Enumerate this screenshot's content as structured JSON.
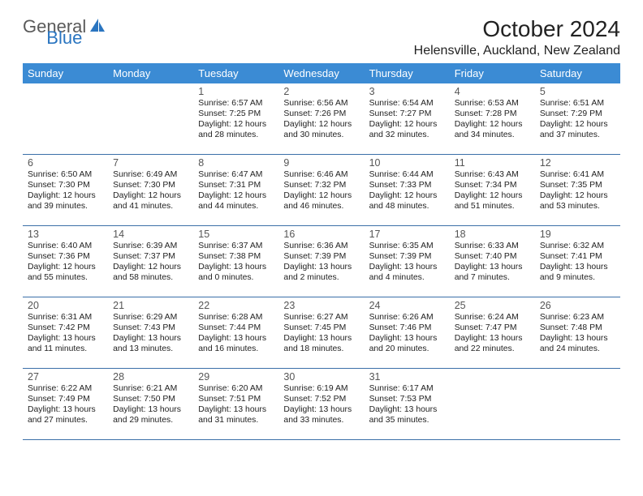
{
  "logo": {
    "text1": "General",
    "text2": "Blue"
  },
  "title": "October 2024",
  "location": "Helensville, Auckland, New Zealand",
  "header_color": "#3b8bd4",
  "divider_color": "#3b6fa8",
  "weekdays": [
    "Sunday",
    "Monday",
    "Tuesday",
    "Wednesday",
    "Thursday",
    "Friday",
    "Saturday"
  ],
  "weeks": [
    [
      null,
      null,
      {
        "d": "1",
        "sr": "Sunrise: 6:57 AM",
        "ss": "Sunset: 7:25 PM",
        "dl1": "Daylight: 12 hours",
        "dl2": "and 28 minutes."
      },
      {
        "d": "2",
        "sr": "Sunrise: 6:56 AM",
        "ss": "Sunset: 7:26 PM",
        "dl1": "Daylight: 12 hours",
        "dl2": "and 30 minutes."
      },
      {
        "d": "3",
        "sr": "Sunrise: 6:54 AM",
        "ss": "Sunset: 7:27 PM",
        "dl1": "Daylight: 12 hours",
        "dl2": "and 32 minutes."
      },
      {
        "d": "4",
        "sr": "Sunrise: 6:53 AM",
        "ss": "Sunset: 7:28 PM",
        "dl1": "Daylight: 12 hours",
        "dl2": "and 34 minutes."
      },
      {
        "d": "5",
        "sr": "Sunrise: 6:51 AM",
        "ss": "Sunset: 7:29 PM",
        "dl1": "Daylight: 12 hours",
        "dl2": "and 37 minutes."
      }
    ],
    [
      {
        "d": "6",
        "sr": "Sunrise: 6:50 AM",
        "ss": "Sunset: 7:30 PM",
        "dl1": "Daylight: 12 hours",
        "dl2": "and 39 minutes."
      },
      {
        "d": "7",
        "sr": "Sunrise: 6:49 AM",
        "ss": "Sunset: 7:30 PM",
        "dl1": "Daylight: 12 hours",
        "dl2": "and 41 minutes."
      },
      {
        "d": "8",
        "sr": "Sunrise: 6:47 AM",
        "ss": "Sunset: 7:31 PM",
        "dl1": "Daylight: 12 hours",
        "dl2": "and 44 minutes."
      },
      {
        "d": "9",
        "sr": "Sunrise: 6:46 AM",
        "ss": "Sunset: 7:32 PM",
        "dl1": "Daylight: 12 hours",
        "dl2": "and 46 minutes."
      },
      {
        "d": "10",
        "sr": "Sunrise: 6:44 AM",
        "ss": "Sunset: 7:33 PM",
        "dl1": "Daylight: 12 hours",
        "dl2": "and 48 minutes."
      },
      {
        "d": "11",
        "sr": "Sunrise: 6:43 AM",
        "ss": "Sunset: 7:34 PM",
        "dl1": "Daylight: 12 hours",
        "dl2": "and 51 minutes."
      },
      {
        "d": "12",
        "sr": "Sunrise: 6:41 AM",
        "ss": "Sunset: 7:35 PM",
        "dl1": "Daylight: 12 hours",
        "dl2": "and 53 minutes."
      }
    ],
    [
      {
        "d": "13",
        "sr": "Sunrise: 6:40 AM",
        "ss": "Sunset: 7:36 PM",
        "dl1": "Daylight: 12 hours",
        "dl2": "and 55 minutes."
      },
      {
        "d": "14",
        "sr": "Sunrise: 6:39 AM",
        "ss": "Sunset: 7:37 PM",
        "dl1": "Daylight: 12 hours",
        "dl2": "and 58 minutes."
      },
      {
        "d": "15",
        "sr": "Sunrise: 6:37 AM",
        "ss": "Sunset: 7:38 PM",
        "dl1": "Daylight: 13 hours",
        "dl2": "and 0 minutes."
      },
      {
        "d": "16",
        "sr": "Sunrise: 6:36 AM",
        "ss": "Sunset: 7:39 PM",
        "dl1": "Daylight: 13 hours",
        "dl2": "and 2 minutes."
      },
      {
        "d": "17",
        "sr": "Sunrise: 6:35 AM",
        "ss": "Sunset: 7:39 PM",
        "dl1": "Daylight: 13 hours",
        "dl2": "and 4 minutes."
      },
      {
        "d": "18",
        "sr": "Sunrise: 6:33 AM",
        "ss": "Sunset: 7:40 PM",
        "dl1": "Daylight: 13 hours",
        "dl2": "and 7 minutes."
      },
      {
        "d": "19",
        "sr": "Sunrise: 6:32 AM",
        "ss": "Sunset: 7:41 PM",
        "dl1": "Daylight: 13 hours",
        "dl2": "and 9 minutes."
      }
    ],
    [
      {
        "d": "20",
        "sr": "Sunrise: 6:31 AM",
        "ss": "Sunset: 7:42 PM",
        "dl1": "Daylight: 13 hours",
        "dl2": "and 11 minutes."
      },
      {
        "d": "21",
        "sr": "Sunrise: 6:29 AM",
        "ss": "Sunset: 7:43 PM",
        "dl1": "Daylight: 13 hours",
        "dl2": "and 13 minutes."
      },
      {
        "d": "22",
        "sr": "Sunrise: 6:28 AM",
        "ss": "Sunset: 7:44 PM",
        "dl1": "Daylight: 13 hours",
        "dl2": "and 16 minutes."
      },
      {
        "d": "23",
        "sr": "Sunrise: 6:27 AM",
        "ss": "Sunset: 7:45 PM",
        "dl1": "Daylight: 13 hours",
        "dl2": "and 18 minutes."
      },
      {
        "d": "24",
        "sr": "Sunrise: 6:26 AM",
        "ss": "Sunset: 7:46 PM",
        "dl1": "Daylight: 13 hours",
        "dl2": "and 20 minutes."
      },
      {
        "d": "25",
        "sr": "Sunrise: 6:24 AM",
        "ss": "Sunset: 7:47 PM",
        "dl1": "Daylight: 13 hours",
        "dl2": "and 22 minutes."
      },
      {
        "d": "26",
        "sr": "Sunrise: 6:23 AM",
        "ss": "Sunset: 7:48 PM",
        "dl1": "Daylight: 13 hours",
        "dl2": "and 24 minutes."
      }
    ],
    [
      {
        "d": "27",
        "sr": "Sunrise: 6:22 AM",
        "ss": "Sunset: 7:49 PM",
        "dl1": "Daylight: 13 hours",
        "dl2": "and 27 minutes."
      },
      {
        "d": "28",
        "sr": "Sunrise: 6:21 AM",
        "ss": "Sunset: 7:50 PM",
        "dl1": "Daylight: 13 hours",
        "dl2": "and 29 minutes."
      },
      {
        "d": "29",
        "sr": "Sunrise: 6:20 AM",
        "ss": "Sunset: 7:51 PM",
        "dl1": "Daylight: 13 hours",
        "dl2": "and 31 minutes."
      },
      {
        "d": "30",
        "sr": "Sunrise: 6:19 AM",
        "ss": "Sunset: 7:52 PM",
        "dl1": "Daylight: 13 hours",
        "dl2": "and 33 minutes."
      },
      {
        "d": "31",
        "sr": "Sunrise: 6:17 AM",
        "ss": "Sunset: 7:53 PM",
        "dl1": "Daylight: 13 hours",
        "dl2": "and 35 minutes."
      },
      null,
      null
    ]
  ]
}
